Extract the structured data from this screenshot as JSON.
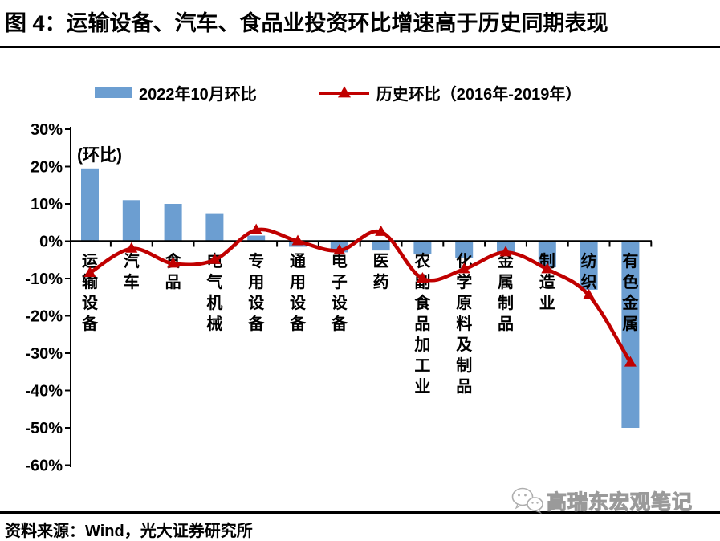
{
  "title": "图 4：运输设备、汽车、食品业投资环比增速高于历史同期表现",
  "legend": [
    {
      "label": "2022年10月环比",
      "marker": "bar",
      "color": "#6C9ED1"
    },
    {
      "label": "历史环比（2016年-2019年）",
      "marker": "line-triangle",
      "color": "#C00000"
    }
  ],
  "plot_annotation": "(环比)",
  "watermark": {
    "icon": "wechat-icon",
    "text": "高瑞东宏观笔记"
  },
  "footer": {
    "source": "资料来源：Wind，光大证券研究所"
  },
  "chart_data": {
    "type": "bar+line",
    "categories": [
      "运输设备",
      "汽车",
      "食品",
      "电气机械",
      "专用设备",
      "通用设备",
      "电子设备",
      "医药",
      "农副食品加工业",
      "化学原料及制品",
      "金属制品",
      "制造业",
      "纺织",
      "有色金属"
    ],
    "series": [
      {
        "name": "2022年10月环比",
        "type": "bar",
        "color": "#6C9ED1",
        "values": [
          19.5,
          11,
          10,
          7.5,
          1.5,
          -1.5,
          -3,
          -2.5,
          -3.5,
          -4.5,
          -3,
          -7,
          -13,
          -50
        ]
      },
      {
        "name": "历史环比（2016年-2019年）",
        "type": "line",
        "color": "#C00000",
        "values": [
          -8.5,
          -2,
          -6,
          -5,
          3,
          0,
          -2.5,
          2.5,
          -10,
          -7.5,
          -3,
          -7.5,
          -14.5,
          -32.5
        ]
      }
    ],
    "unit": "%",
    "yticks": [
      30,
      20,
      10,
      0,
      -10,
      -20,
      -30,
      -40,
      -50,
      -60
    ],
    "ylim": [
      -60,
      30
    ],
    "grid": false,
    "legend_position": "top"
  }
}
